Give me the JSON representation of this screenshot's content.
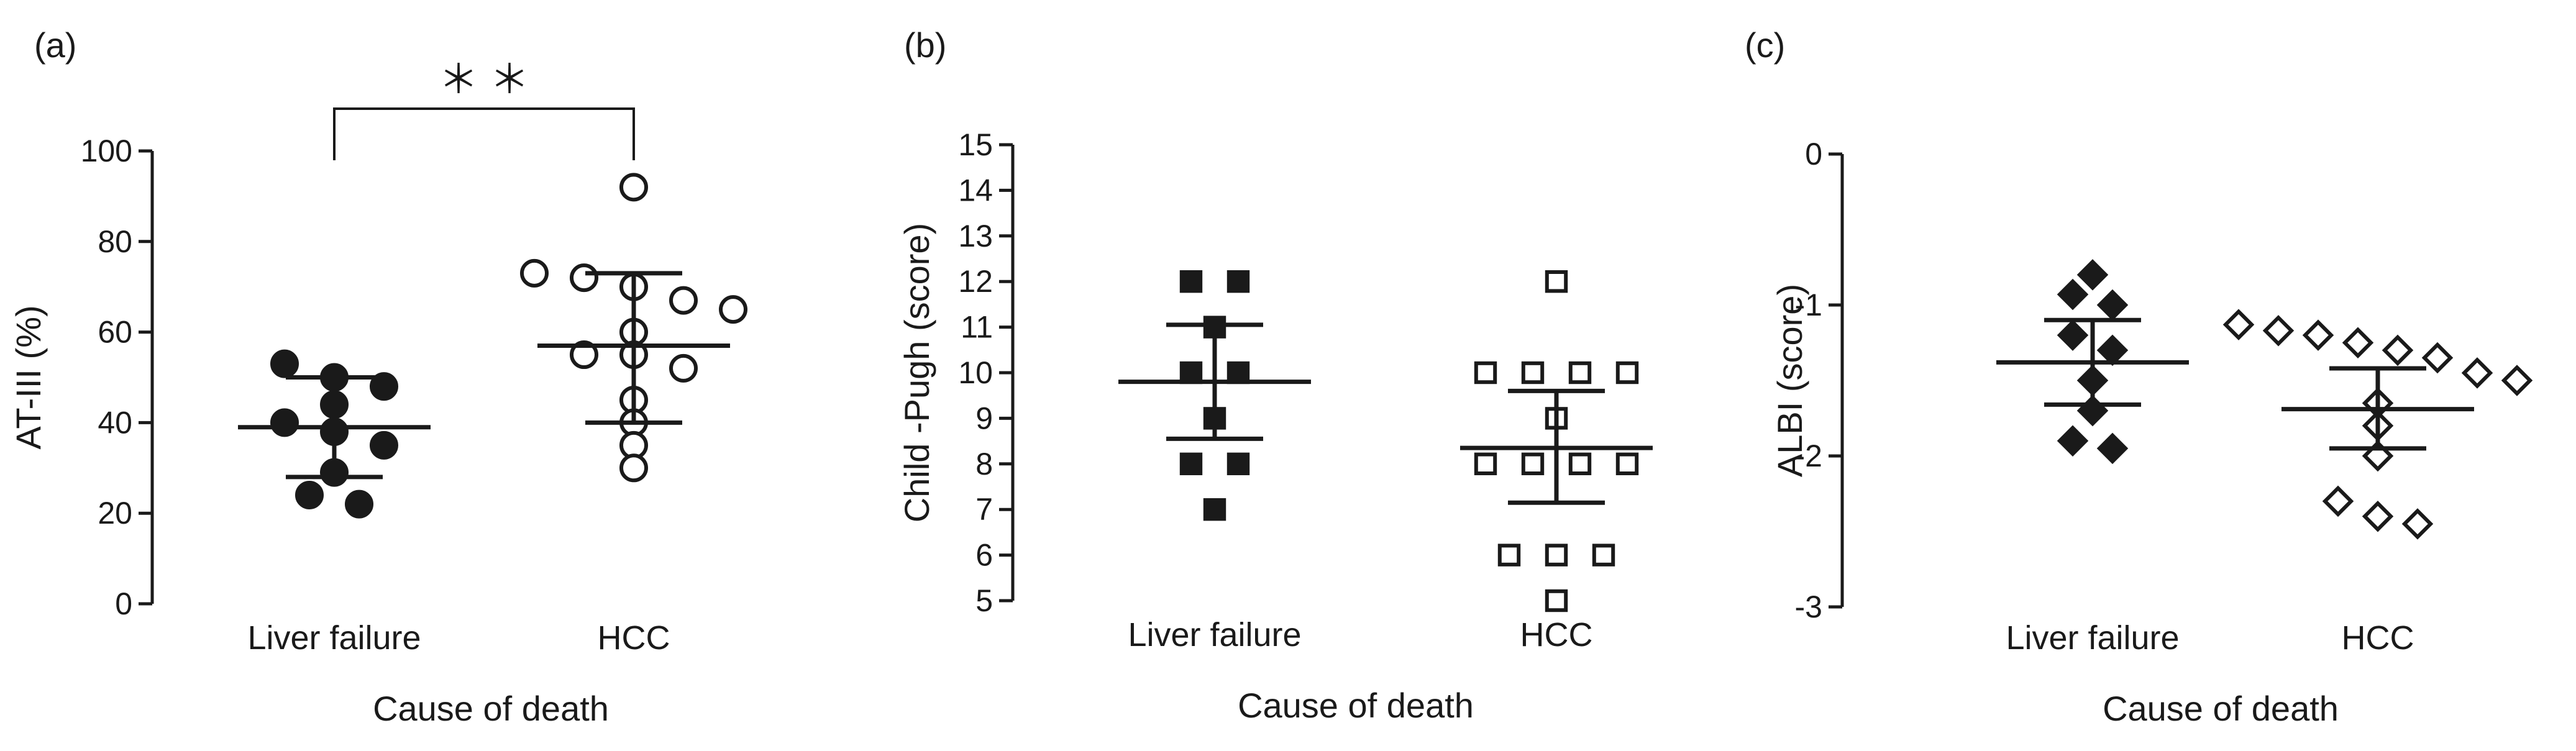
{
  "colors": {
    "ink": "#1a1a1a",
    "background": "#ffffff"
  },
  "chart_data": [
    {
      "type": "scatter",
      "panel_label": "(a)",
      "title": "",
      "xlabel": "Cause of death",
      "ylabel": "AT-III (%)",
      "ylim": [
        0,
        100
      ],
      "yticks": [
        0,
        20,
        40,
        60,
        80,
        100
      ],
      "ytick_labels": [
        "0",
        "20",
        "40",
        "60",
        "80",
        "100"
      ],
      "categories": [
        "Liver failure",
        "HCC"
      ],
      "marker_style": [
        "filled-circle",
        "open-circle"
      ],
      "significance": {
        "label": "＊＊",
        "between": [
          0,
          1
        ]
      },
      "series": [
        {
          "name": "Liver failure",
          "values": [
            53,
            50,
            48,
            44,
            40,
            38,
            35,
            29,
            24,
            22
          ],
          "mean": 39,
          "sd_low": 28,
          "sd_high": 50
        },
        {
          "name": "HCC",
          "values": [
            92,
            73,
            72,
            70,
            67,
            65,
            60,
            55,
            55,
            52,
            45,
            40,
            35,
            30
          ],
          "mean": 57,
          "sd_low": 40,
          "sd_high": 73
        }
      ]
    },
    {
      "type": "scatter",
      "panel_label": "(b)",
      "title": "",
      "xlabel": "Cause of death",
      "ylabel": "Child -Pugh (score)",
      "ylim": [
        5,
        15
      ],
      "yticks": [
        5,
        6,
        7,
        8,
        9,
        10,
        11,
        12,
        13,
        14,
        15
      ],
      "ytick_labels": [
        "5",
        "6",
        "7",
        "8",
        "9",
        "10",
        "11",
        "12",
        "13",
        "14",
        "15"
      ],
      "categories": [
        "Liver failure",
        "HCC"
      ],
      "marker_style": [
        "filled-square",
        "open-square"
      ],
      "series": [
        {
          "name": "Liver failure",
          "values": [
            12,
            12,
            11,
            10,
            10,
            9,
            8,
            8,
            7
          ],
          "mean": 9.8,
          "sd_low": 8.55,
          "sd_high": 11.05
        },
        {
          "name": "HCC",
          "values": [
            12,
            10,
            10,
            10,
            10,
            9,
            8,
            8,
            8,
            8,
            6,
            6,
            6,
            5
          ],
          "mean": 8.35,
          "sd_low": 7.15,
          "sd_high": 9.6
        }
      ]
    },
    {
      "type": "scatter",
      "panel_label": "(c)",
      "title": "",
      "xlabel": "Cause of death",
      "ylabel": "ALBI (score)",
      "ylim": [
        -3,
        0
      ],
      "yticks": [
        -3,
        -2,
        -1,
        0
      ],
      "ytick_labels": [
        "-3",
        "-2",
        "-1",
        "0"
      ],
      "categories": [
        "Liver failure",
        "HCC"
      ],
      "marker_style": [
        "filled-diamond",
        "open-diamond"
      ],
      "series": [
        {
          "name": "Liver failure",
          "values": [
            -0.8,
            -0.93,
            -1.0,
            -1.2,
            -1.3,
            -1.5,
            -1.7,
            -1.9,
            -1.95
          ],
          "mean": -1.38,
          "sd_low": -1.66,
          "sd_high": -1.1
        },
        {
          "name": "HCC",
          "values": [
            -1.13,
            -1.17,
            -1.2,
            -1.25,
            -1.3,
            -1.35,
            -1.45,
            -1.5,
            -1.65,
            -1.8,
            -2.0,
            -2.3,
            -2.4,
            -2.45
          ],
          "mean": -1.69,
          "sd_low": -1.95,
          "sd_high": -1.42
        }
      ]
    }
  ]
}
